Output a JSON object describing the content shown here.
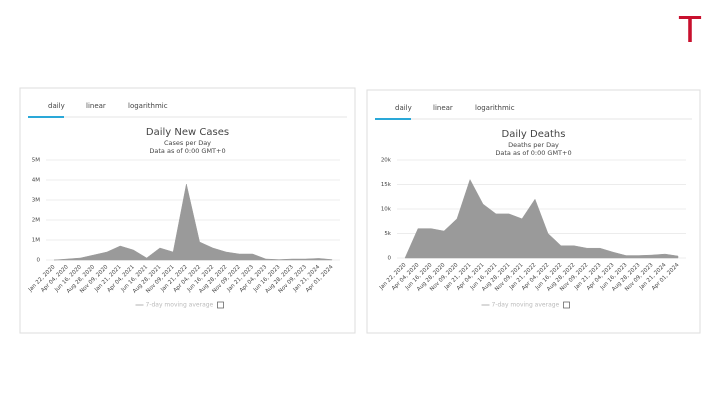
{
  "logo": "T",
  "chart_data": [
    {
      "type": "area",
      "tabs": [
        "daily",
        "linear",
        "logarithmic"
      ],
      "active_tab": 0,
      "title": "Daily New Cases",
      "subtitle": "Cases per Day",
      "note": "Data as of 0:00 GMT+0",
      "categories": [
        "Jan 22, 2020",
        "Apr 04, 2020",
        "Jun 16, 2020",
        "Aug 28, 2020",
        "Nov 09, 2020",
        "Jan 21, 2021",
        "Apr 04, 2021",
        "Jun 16, 2021",
        "Aug 28, 2021",
        "Nov 09, 2021",
        "Jan 21, 2022",
        "Apr 04, 2022",
        "Jun 16, 2022",
        "Aug 28, 2022",
        "Nov 09, 2022",
        "Jan 21, 2023",
        "Apr 04, 2023",
        "Jun 16, 2023",
        "Aug 28, 2023",
        "Nov 09, 2023",
        "Jan 21, 2024",
        "Apr 01, 2024"
      ],
      "series": [
        {
          "name": "7-day moving average",
          "color": "#9a9a9a",
          "values": [
            0,
            50000,
            100000,
            250000,
            400000,
            700000,
            500000,
            100000,
            600000,
            400000,
            3800000,
            900000,
            600000,
            400000,
            300000,
            300000,
            50000,
            20000,
            50000,
            50000,
            80000,
            20000
          ]
        }
      ],
      "ylim": [
        0,
        5000000
      ],
      "yticks": [
        0,
        {
          "value": 1000000,
          "label": "1M"
        },
        {
          "value": 2000000,
          "label": "2M"
        },
        {
          "value": 3000000,
          "label": "3M"
        },
        {
          "value": 4000000,
          "label": "4M"
        },
        {
          "value": 5000000,
          "label": "5M"
        }
      ],
      "grid": true
    },
    {
      "type": "area",
      "tabs": [
        "daily",
        "linear",
        "logarithmic"
      ],
      "active_tab": 0,
      "title": "Daily Deaths",
      "subtitle": "Deaths per Day",
      "note": "Data as of 0:00 GMT+0",
      "categories": [
        "Jan 22, 2020",
        "Apr 04, 2020",
        "Jun 16, 2020",
        "Aug 28, 2020",
        "Nov 09, 2020",
        "Jan 21, 2021",
        "Apr 04, 2021",
        "Jun 16, 2021",
        "Aug 28, 2021",
        "Nov 09, 2021",
        "Jan 21, 2022",
        "Apr 04, 2022",
        "Jun 16, 2022",
        "Aug 28, 2022",
        "Nov 09, 2022",
        "Jan 21, 2023",
        "Apr 04, 2023",
        "Jun 16, 2023",
        "Aug 28, 2023",
        "Nov 09, 2023",
        "Jan 21, 2024",
        "Apr 01, 2024"
      ],
      "series": [
        {
          "name": "7-day moving average",
          "color": "#9a9a9a",
          "values": [
            0,
            6000,
            6000,
            5500,
            8000,
            16000,
            11000,
            9000,
            9000,
            8000,
            12000,
            5000,
            2500,
            2500,
            2000,
            2000,
            1200,
            500,
            500,
            600,
            800,
            400
          ]
        }
      ],
      "ylim": [
        0,
        20000
      ],
      "yticks": [
        0,
        {
          "value": 5000,
          "label": "5k"
        },
        {
          "value": 10000,
          "label": "10k"
        },
        {
          "value": 15000,
          "label": "15k"
        },
        {
          "value": 20000,
          "label": "20k"
        }
      ],
      "grid": true
    }
  ]
}
